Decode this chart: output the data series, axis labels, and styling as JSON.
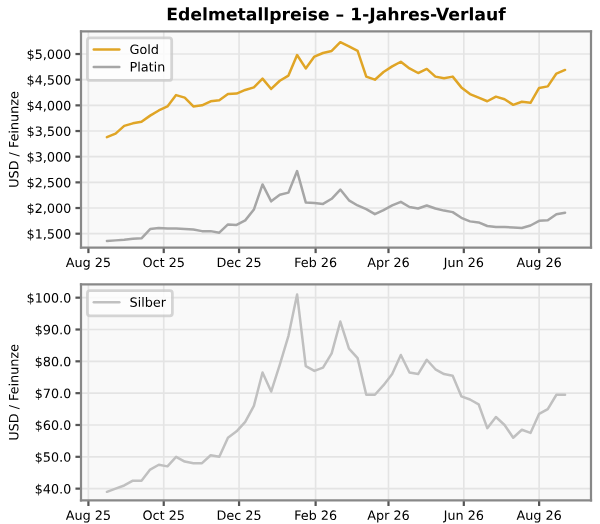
{
  "chart_data": [
    {
      "type": "line",
      "title": "Edelmetallpreise – 1-Jahres-Verlauf",
      "ylabel": "USD / Feinunze",
      "x": [
        "2025-08-16",
        "2025-08-23",
        "2025-08-30",
        "2025-09-06",
        "2025-09-13",
        "2025-09-20",
        "2025-09-27",
        "2025-10-04",
        "2025-10-11",
        "2025-10-18",
        "2025-10-25",
        "2025-11-01",
        "2025-11-08",
        "2025-11-15",
        "2025-11-22",
        "2025-11-29",
        "2025-12-06",
        "2025-12-13",
        "2025-12-20",
        "2025-12-27",
        "2026-01-03",
        "2026-01-10",
        "2026-01-17",
        "2026-01-24",
        "2026-01-31",
        "2026-02-07",
        "2026-02-14",
        "2026-02-21",
        "2026-02-28",
        "2026-03-07",
        "2026-03-14",
        "2026-03-21",
        "2026-03-28",
        "2026-04-04",
        "2026-04-11",
        "2026-04-18",
        "2026-04-25",
        "2026-05-02",
        "2026-05-09",
        "2026-05-16",
        "2026-05-23",
        "2026-05-30",
        "2026-06-06",
        "2026-06-13",
        "2026-06-20",
        "2026-06-27",
        "2026-07-04",
        "2026-07-11",
        "2026-07-18",
        "2026-07-25",
        "2026-08-01",
        "2026-08-08",
        "2026-08-15",
        "2026-08-22"
      ],
      "series": [
        {
          "name": "Gold",
          "color": "#e0a526",
          "values": [
            3380,
            3450,
            3600,
            3650,
            3680,
            3800,
            3900,
            3980,
            4200,
            4150,
            3980,
            4000,
            4080,
            4100,
            4220,
            4230,
            4300,
            4350,
            4520,
            4320,
            4480,
            4580,
            4980,
            4720,
            4950,
            5020,
            5060,
            5230,
            5150,
            5060,
            4560,
            4500,
            4650,
            4760,
            4850,
            4720,
            4630,
            4710,
            4560,
            4530,
            4560,
            4350,
            4220,
            4150,
            4080,
            4170,
            4120,
            4010,
            4070,
            4050,
            4340,
            4370,
            4620,
            4690
          ]
        },
        {
          "name": "Platin",
          "color": "#a6a6a6",
          "values": [
            1360,
            1370,
            1380,
            1400,
            1410,
            1590,
            1610,
            1600,
            1600,
            1590,
            1580,
            1550,
            1550,
            1520,
            1680,
            1670,
            1760,
            1970,
            2460,
            2130,
            2260,
            2300,
            2720,
            2110,
            2100,
            2080,
            2180,
            2360,
            2150,
            2050,
            1980,
            1880,
            1960,
            2050,
            2120,
            2020,
            1990,
            2050,
            1990,
            1950,
            1920,
            1810,
            1740,
            1720,
            1650,
            1630,
            1630,
            1620,
            1610,
            1660,
            1750,
            1760,
            1880,
            1910
          ]
        }
      ],
      "xlim": [
        "2025-07-26",
        "2026-09-12"
      ],
      "xticks": [
        {
          "value": "2025-08-01",
          "label": "Aug 25"
        },
        {
          "value": "2025-10-01",
          "label": "Oct 25"
        },
        {
          "value": "2025-12-01",
          "label": "Dec 25"
        },
        {
          "value": "2026-02-01",
          "label": "Feb 26"
        },
        {
          "value": "2026-04-01",
          "label": "Apr 26"
        },
        {
          "value": "2026-06-01",
          "label": "Jun 26"
        },
        {
          "value": "2026-08-01",
          "label": "Aug 26"
        }
      ],
      "ylim": [
        1230,
        5440
      ],
      "yticks": [
        {
          "value": 1500,
          "label": "$1,500"
        },
        {
          "value": 2000,
          "label": "$2,000"
        },
        {
          "value": 2500,
          "label": "$2,500"
        },
        {
          "value": 3000,
          "label": "$3,000"
        },
        {
          "value": 3500,
          "label": "$3,500"
        },
        {
          "value": 4000,
          "label": "$4,000"
        },
        {
          "value": 4500,
          "label": "$4,500"
        },
        {
          "value": 5000,
          "label": "$5,000"
        }
      ],
      "grid": true,
      "legend": "top left"
    },
    {
      "type": "line",
      "ylabel": "USD / Feinunze",
      "x": [
        "2025-08-16",
        "2025-08-23",
        "2025-08-30",
        "2025-09-06",
        "2025-09-13",
        "2025-09-20",
        "2025-09-27",
        "2025-10-04",
        "2025-10-11",
        "2025-10-18",
        "2025-10-25",
        "2025-11-01",
        "2025-11-08",
        "2025-11-15",
        "2025-11-22",
        "2025-11-29",
        "2025-12-06",
        "2025-12-13",
        "2025-12-20",
        "2025-12-27",
        "2026-01-03",
        "2026-01-10",
        "2026-01-17",
        "2026-01-24",
        "2026-01-31",
        "2026-02-07",
        "2026-02-14",
        "2026-02-21",
        "2026-02-28",
        "2026-03-07",
        "2026-03-14",
        "2026-03-21",
        "2026-03-28",
        "2026-04-04",
        "2026-04-11",
        "2026-04-18",
        "2026-04-25",
        "2026-05-02",
        "2026-05-09",
        "2026-05-16",
        "2026-05-23",
        "2026-05-30",
        "2026-06-06",
        "2026-06-13",
        "2026-06-20",
        "2026-06-27",
        "2026-07-04",
        "2026-07-11",
        "2026-07-18",
        "2026-07-25",
        "2026-08-01",
        "2026-08-08",
        "2026-08-15",
        "2026-08-22"
      ],
      "series": [
        {
          "name": "Silber",
          "color": "#c0c0c0",
          "values": [
            39,
            40,
            41,
            42.5,
            42.5,
            46,
            47.5,
            47,
            50,
            48.5,
            48,
            48,
            50.5,
            50,
            56,
            58,
            61,
            66,
            76.5,
            70.5,
            79,
            88,
            101,
            78.5,
            77,
            78,
            82.5,
            92.5,
            84,
            81,
            69.5,
            69.5,
            72.5,
            76,
            82,
            76.5,
            76,
            80.5,
            77.5,
            76,
            75.5,
            69,
            68,
            66.5,
            59,
            62.5,
            60,
            56,
            58.5,
            57.5,
            63.5,
            65,
            69.5,
            69.5
          ]
        }
      ],
      "xlim": [
        "2025-07-26",
        "2026-09-12"
      ],
      "xticks": [
        {
          "value": "2025-08-01",
          "label": "Aug 25"
        },
        {
          "value": "2025-10-01",
          "label": "Oct 25"
        },
        {
          "value": "2025-12-01",
          "label": "Dec 25"
        },
        {
          "value": "2026-02-01",
          "label": "Feb 26"
        },
        {
          "value": "2026-04-01",
          "label": "Apr 26"
        },
        {
          "value": "2026-06-01",
          "label": "Jun 26"
        },
        {
          "value": "2026-08-01",
          "label": "Aug 26"
        }
      ],
      "ylim": [
        36.3,
        104.2
      ],
      "yticks": [
        {
          "value": 40,
          "label": "$40.0"
        },
        {
          "value": 50,
          "label": "$50.0"
        },
        {
          "value": 60,
          "label": "$60.0"
        },
        {
          "value": 70,
          "label": "$70.0"
        },
        {
          "value": 80,
          "label": "$80.0"
        },
        {
          "value": 90,
          "label": "$90.0"
        },
        {
          "value": 100,
          "label": "$100.0"
        }
      ],
      "grid": true,
      "legend": "top left"
    }
  ]
}
